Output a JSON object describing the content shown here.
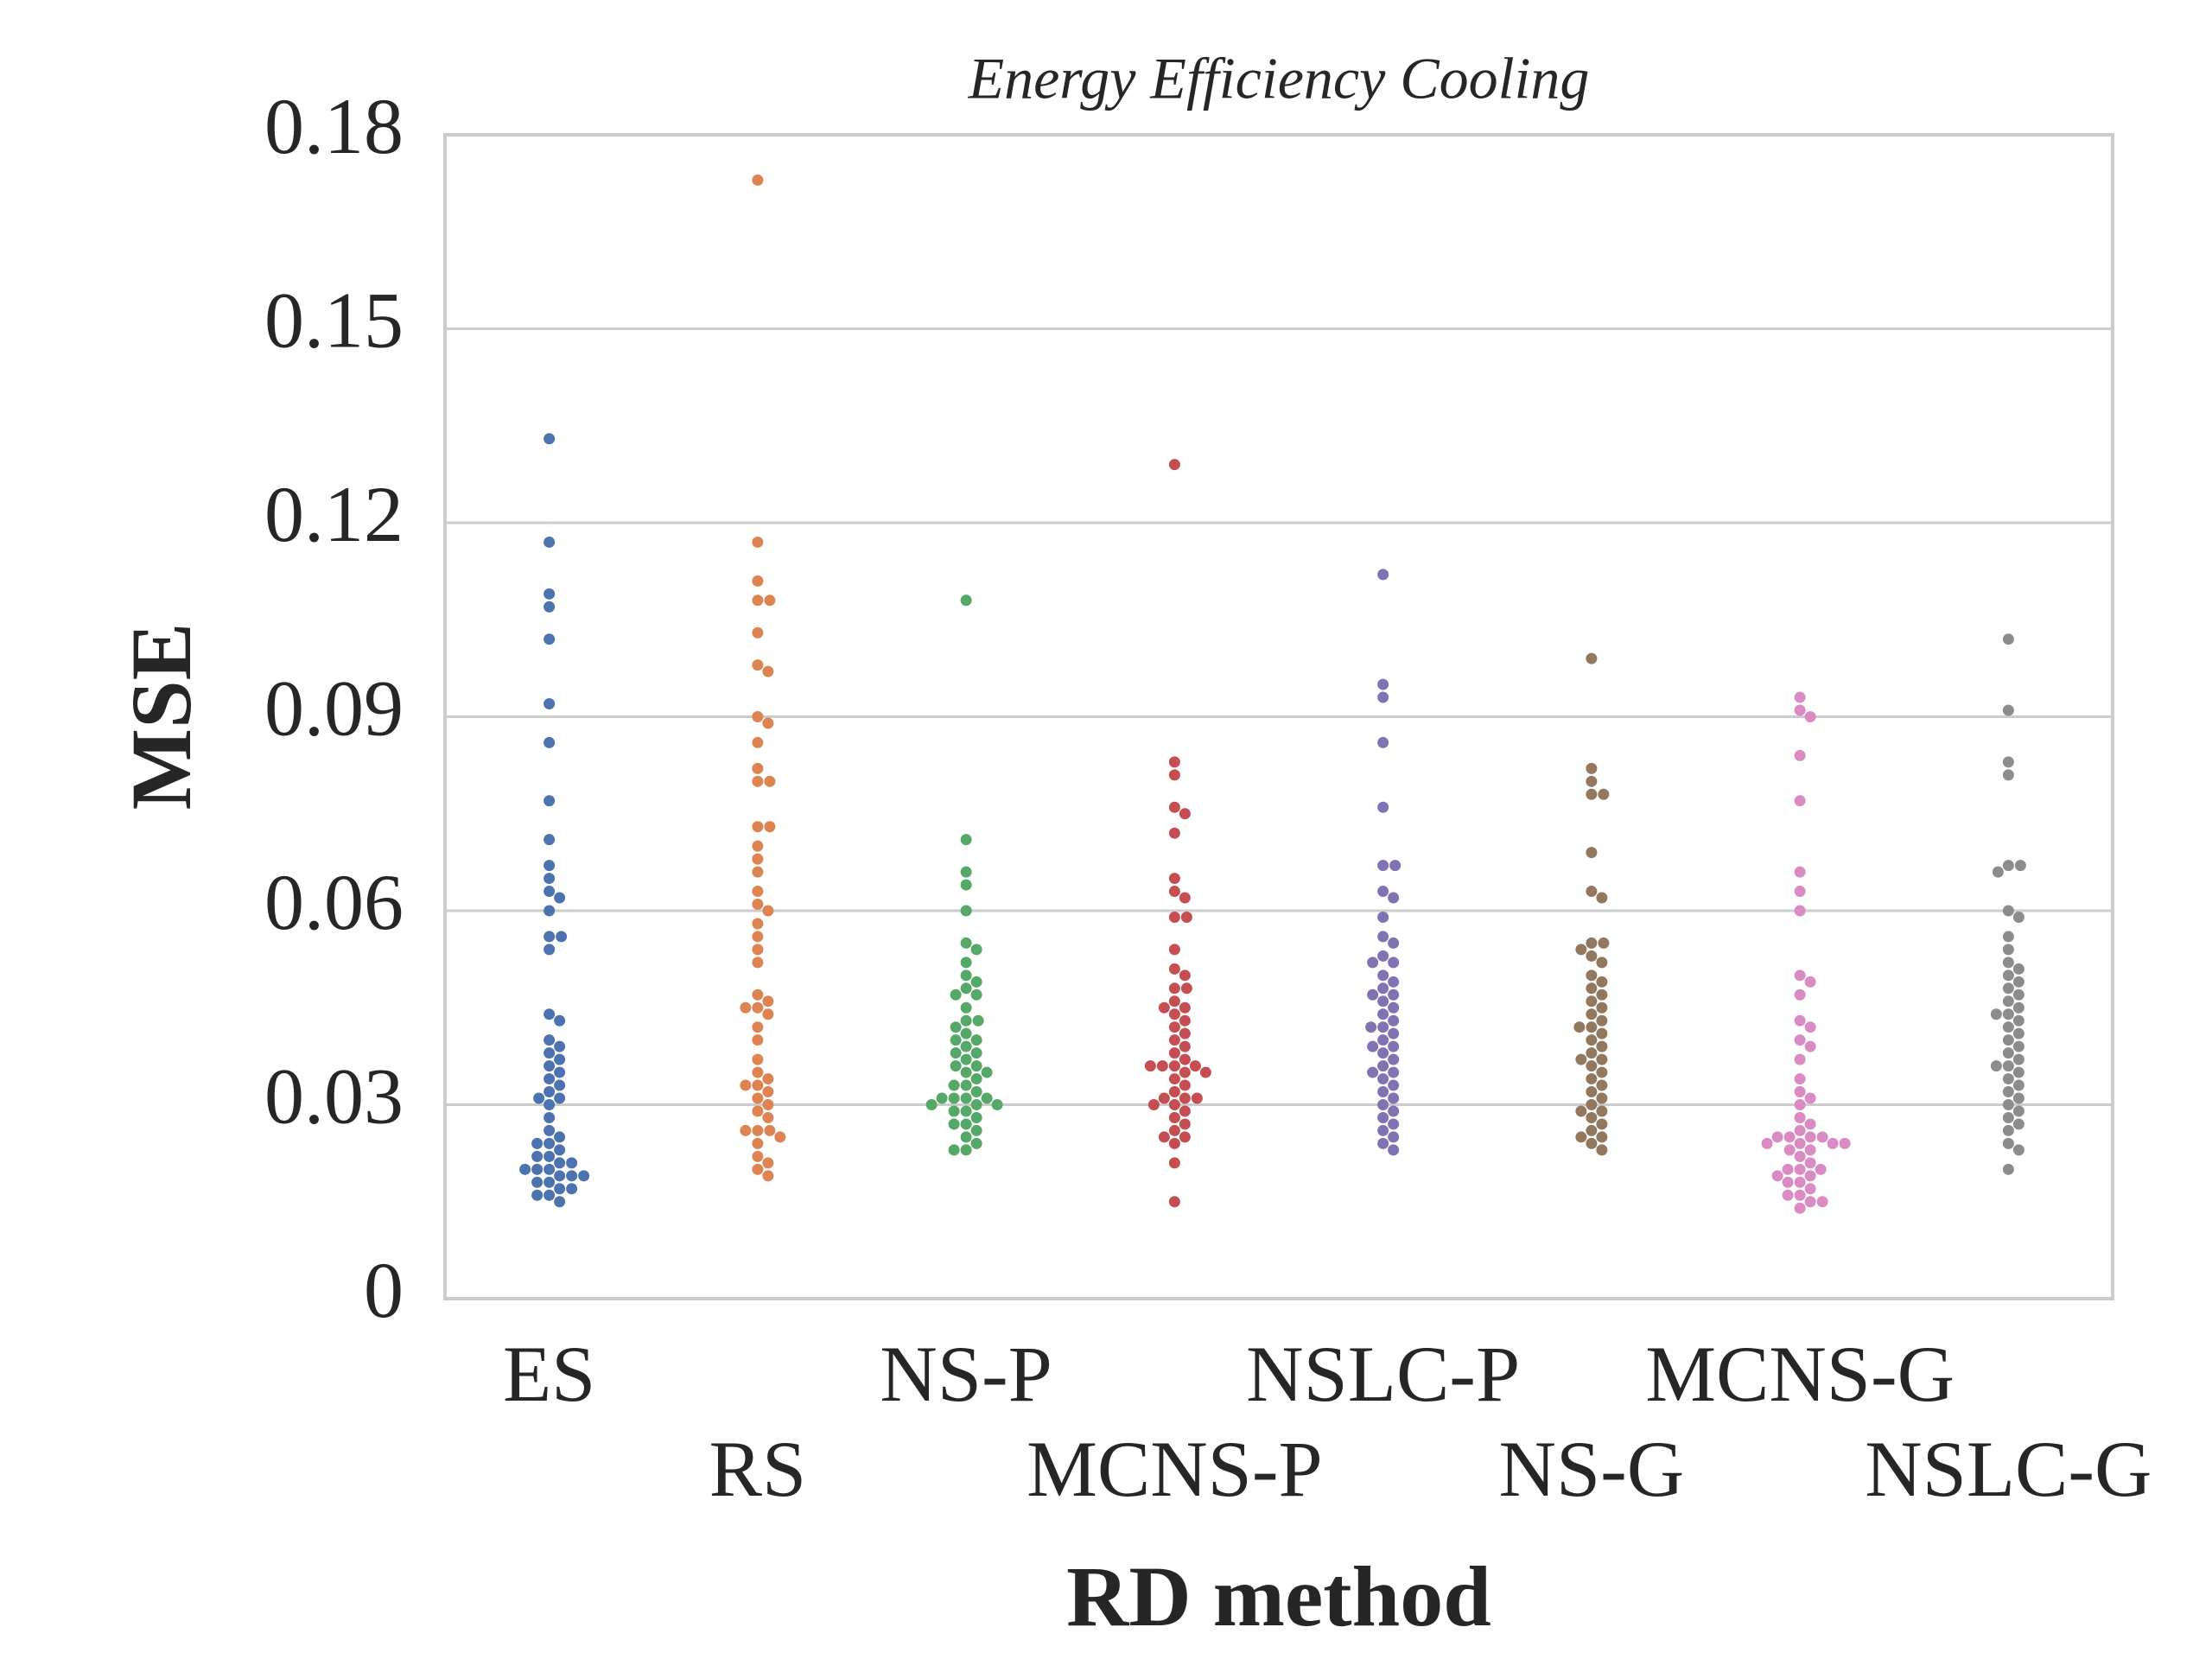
{
  "chart_data": {
    "type": "swarm",
    "title": "Energy Efficiency Cooling",
    "xlabel": "RD method",
    "ylabel": "MSE",
    "categories": [
      "ES",
      "RS",
      "NS-P",
      "MCNS-P",
      "NSLC-P",
      "NS-G",
      "MCNS-G",
      "NSLC-G"
    ],
    "colors": [
      "#4c72b0",
      "#dd8452",
      "#55a868",
      "#c44e52",
      "#8172b3",
      "#937860",
      "#da8bc3",
      "#8c8c8c"
    ],
    "values": [
      [
        0.133,
        0.117,
        0.109,
        0.107,
        0.102,
        0.092,
        0.086,
        0.077,
        0.071,
        0.067,
        0.065,
        0.063,
        0.062,
        0.06,
        0.056,
        0.056,
        0.054,
        0.044,
        0.043,
        0.04,
        0.039,
        0.038,
        0.037,
        0.036,
        0.035,
        0.034,
        0.033,
        0.032,
        0.031,
        0.031,
        0.03,
        0.028,
        0.026,
        0.025,
        0.024,
        0.024,
        0.023,
        0.022,
        0.022,
        0.021,
        0.021,
        0.02,
        0.02,
        0.02,
        0.019,
        0.019,
        0.019,
        0.018,
        0.018,
        0.017,
        0.017,
        0.016,
        0.016,
        0.015
      ],
      [
        0.173,
        0.117,
        0.111,
        0.108,
        0.108,
        0.103,
        0.098,
        0.097,
        0.09,
        0.089,
        0.086,
        0.082,
        0.08,
        0.08,
        0.073,
        0.073,
        0.07,
        0.068,
        0.066,
        0.063,
        0.061,
        0.06,
        0.058,
        0.056,
        0.054,
        0.052,
        0.047,
        0.046,
        0.045,
        0.045,
        0.044,
        0.042,
        0.04,
        0.037,
        0.035,
        0.034,
        0.033,
        0.033,
        0.032,
        0.031,
        0.03,
        0.029,
        0.028,
        0.026,
        0.026,
        0.026,
        0.025,
        0.024,
        0.022,
        0.021,
        0.02,
        0.019
      ],
      [
        0.108,
        0.071,
        0.066,
        0.064,
        0.06,
        0.055,
        0.054,
        0.052,
        0.05,
        0.049,
        0.048,
        0.047,
        0.047,
        0.045,
        0.043,
        0.043,
        0.042,
        0.041,
        0.04,
        0.04,
        0.039,
        0.038,
        0.038,
        0.037,
        0.036,
        0.036,
        0.035,
        0.035,
        0.034,
        0.033,
        0.033,
        0.032,
        0.031,
        0.031,
        0.031,
        0.031,
        0.03,
        0.03,
        0.03,
        0.029,
        0.029,
        0.028,
        0.027,
        0.027,
        0.026,
        0.025,
        0.024,
        0.023,
        0.023
      ],
      [
        0.129,
        0.083,
        0.081,
        0.076,
        0.075,
        0.072,
        0.065,
        0.063,
        0.062,
        0.059,
        0.059,
        0.054,
        0.051,
        0.05,
        0.048,
        0.048,
        0.046,
        0.045,
        0.045,
        0.044,
        0.043,
        0.042,
        0.041,
        0.04,
        0.039,
        0.038,
        0.037,
        0.036,
        0.036,
        0.036,
        0.036,
        0.035,
        0.035,
        0.034,
        0.033,
        0.032,
        0.031,
        0.031,
        0.031,
        0.03,
        0.03,
        0.029,
        0.028,
        0.027,
        0.026,
        0.025,
        0.025,
        0.024,
        0.021,
        0.015
      ],
      [
        0.112,
        0.095,
        0.093,
        0.086,
        0.076,
        0.067,
        0.067,
        0.063,
        0.062,
        0.059,
        0.056,
        0.055,
        0.053,
        0.052,
        0.052,
        0.05,
        0.049,
        0.048,
        0.047,
        0.047,
        0.046,
        0.045,
        0.044,
        0.043,
        0.042,
        0.042,
        0.041,
        0.04,
        0.039,
        0.039,
        0.038,
        0.037,
        0.036,
        0.035,
        0.035,
        0.034,
        0.033,
        0.032,
        0.031,
        0.03,
        0.029,
        0.028,
        0.027,
        0.026,
        0.025,
        0.024,
        0.023
      ],
      [
        0.099,
        0.082,
        0.08,
        0.078,
        0.078,
        0.069,
        0.063,
        0.062,
        0.055,
        0.055,
        0.054,
        0.053,
        0.052,
        0.05,
        0.049,
        0.048,
        0.047,
        0.046,
        0.045,
        0.044,
        0.043,
        0.042,
        0.042,
        0.041,
        0.04,
        0.039,
        0.038,
        0.037,
        0.037,
        0.036,
        0.035,
        0.034,
        0.033,
        0.032,
        0.031,
        0.03,
        0.029,
        0.029,
        0.028,
        0.027,
        0.026,
        0.025,
        0.025,
        0.024,
        0.023
      ],
      [
        0.093,
        0.091,
        0.09,
        0.084,
        0.077,
        0.066,
        0.063,
        0.06,
        0.05,
        0.049,
        0.047,
        0.043,
        0.042,
        0.04,
        0.039,
        0.037,
        0.034,
        0.032,
        0.031,
        0.03,
        0.028,
        0.027,
        0.026,
        0.025,
        0.025,
        0.025,
        0.025,
        0.024,
        0.024,
        0.024,
        0.024,
        0.023,
        0.023,
        0.022,
        0.021,
        0.02,
        0.02,
        0.02,
        0.019,
        0.019,
        0.018,
        0.018,
        0.017,
        0.016,
        0.016,
        0.015,
        0.015,
        0.014
      ],
      [
        0.102,
        0.091,
        0.083,
        0.081,
        0.067,
        0.067,
        0.066,
        0.06,
        0.059,
        0.056,
        0.054,
        0.052,
        0.051,
        0.05,
        0.049,
        0.048,
        0.047,
        0.046,
        0.045,
        0.044,
        0.044,
        0.043,
        0.042,
        0.041,
        0.04,
        0.039,
        0.038,
        0.037,
        0.036,
        0.036,
        0.035,
        0.034,
        0.033,
        0.032,
        0.031,
        0.03,
        0.029,
        0.028,
        0.027,
        0.026,
        0.024,
        0.023,
        0.02
      ]
    ],
    "ylim": [
      0,
      0.18
    ],
    "yticks": [
      0,
      0.03,
      0.06,
      0.09,
      0.12,
      0.15,
      0.18
    ],
    "grid": true
  }
}
